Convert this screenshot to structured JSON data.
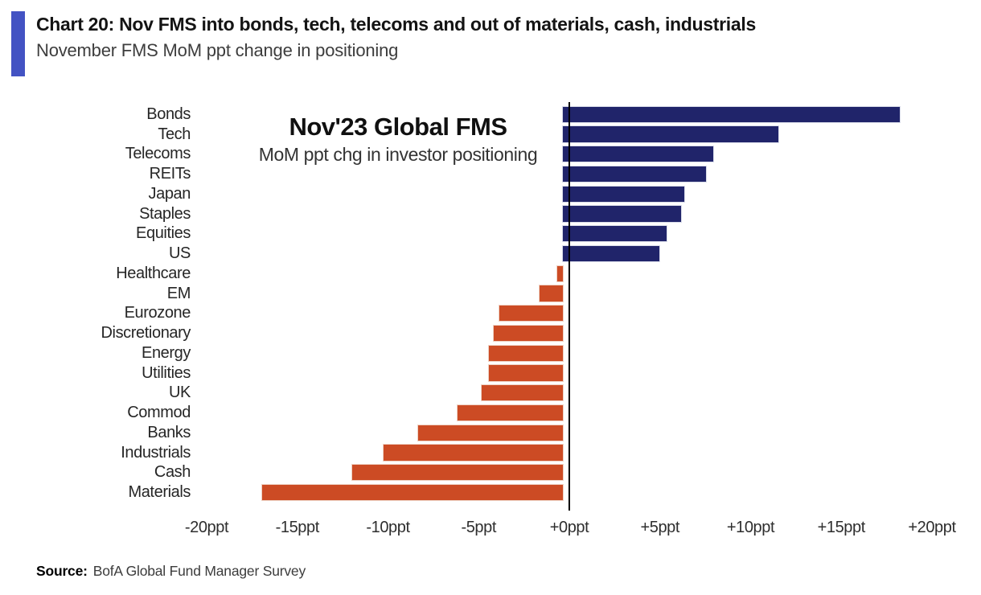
{
  "header": {
    "title": "Chart 20: Nov FMS into bonds, tech, telecoms and out of materials, cash, industrials",
    "subtitle": "November FMS MoM ppt change in positioning",
    "accent_color": "#4353c3"
  },
  "annotation": {
    "title": "Nov'23 Global FMS",
    "subtitle": "MoM ppt chg in investor positioning"
  },
  "source": {
    "label": "Source:",
    "text": "BofA Global Fund Manager Survey"
  },
  "chart_data": {
    "type": "bar",
    "orientation": "horizontal",
    "title": "Nov'23 Global FMS",
    "subtitle": "MoM ppt chg in investor positioning",
    "categories": [
      "Bonds",
      "Tech",
      "Telecoms",
      "REITs",
      "Japan",
      "Staples",
      "Equities",
      "US",
      "Healthcare",
      "EM",
      "Eurozone",
      "Discretionary",
      "Energy",
      "Utilities",
      "UK",
      "Commod",
      "Banks",
      "Industrials",
      "Cash",
      "Materials"
    ],
    "values": [
      18.6,
      11.9,
      8.3,
      7.9,
      6.7,
      6.5,
      5.7,
      5.3,
      -0.3,
      -1.3,
      -3.5,
      -3.8,
      -4.1,
      -4.1,
      -4.5,
      -5.8,
      -8.0,
      -9.9,
      -11.6,
      -16.6
    ],
    "unit": "ppt",
    "xlabel": "",
    "ylabel": "",
    "xlim": [
      -20,
      20
    ],
    "x_ticks": [
      -20,
      -15,
      -10,
      -5,
      0,
      5,
      10,
      15,
      20
    ],
    "x_tick_labels": [
      "-20ppt",
      "-15ppt",
      "-10ppt",
      "-5ppt",
      "+0ppt",
      "+5ppt",
      "+10ppt",
      "+15ppt",
      "+20ppt"
    ],
    "positive_color": "#20246a",
    "negative_color": "#cc4b24",
    "axis_color": "#000000",
    "grid": false,
    "legend": false
  }
}
